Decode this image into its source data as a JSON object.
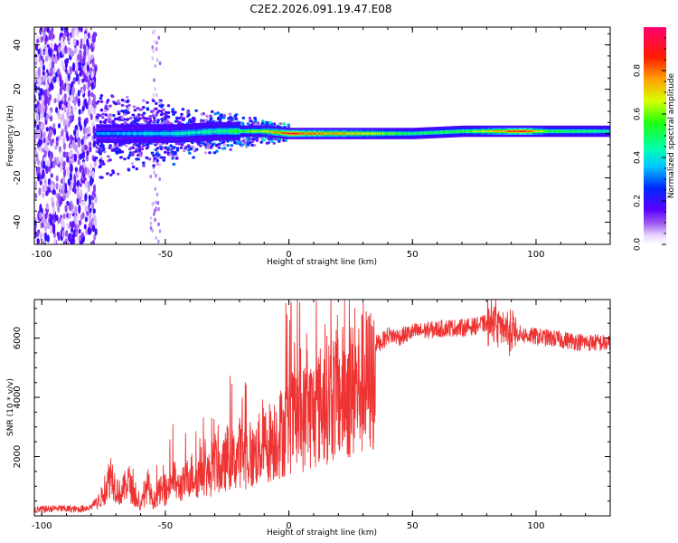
{
  "figure": {
    "title": "C2E2.2026.091.19.47.E08"
  },
  "colors": {
    "signal_line": "#ee3333",
    "background": "#ffffff",
    "axis": "#000000"
  },
  "chart_data": [
    {
      "type": "heatmap",
      "title": "C2E2.2026.091.19.47.E08",
      "xlabel": "Height of straight line (km)",
      "ylabel": "Frequency (Hz)",
      "xlim": [
        -103,
        130
      ],
      "ylim": [
        -50,
        48
      ],
      "x_ticks": [
        -100,
        -50,
        0,
        50,
        100
      ],
      "y_ticks": [
        -40,
        -20,
        0,
        20,
        40
      ],
      "x_tick_labels": [
        "-100",
        "-50",
        "0",
        "50",
        "100"
      ],
      "y_tick_labels": [
        "-40",
        "-20",
        "0",
        "20",
        "40"
      ],
      "colorbar": {
        "label": "Normalized spectral amplitude",
        "range": [
          0,
          1
        ],
        "ticks": [
          0.0,
          0.2,
          0.4,
          0.6,
          0.8
        ],
        "tick_labels": [
          "0.0",
          "0.2",
          "0.4",
          "0.6",
          "0.8"
        ]
      },
      "description_values": {
        "ridge_center_hz": [
          [
            -76,
            0
          ],
          [
            -60,
            0
          ],
          [
            -45,
            0
          ],
          [
            -30,
            1
          ],
          [
            -10,
            1
          ],
          [
            0,
            0
          ],
          [
            10,
            0
          ],
          [
            30,
            0
          ],
          [
            50,
            0
          ],
          [
            70,
            1
          ],
          [
            90,
            1
          ],
          [
            110,
            1
          ],
          [
            130,
            1
          ]
        ],
        "ridge_peak_amplitude": [
          [
            -76,
            0.35
          ],
          [
            -60,
            0.4
          ],
          [
            -45,
            0.45
          ],
          [
            -30,
            0.5
          ],
          [
            -20,
            0.6
          ],
          [
            -10,
            0.7
          ],
          [
            0,
            0.95
          ],
          [
            10,
            0.85
          ],
          [
            20,
            0.8
          ],
          [
            30,
            0.75
          ],
          [
            50,
            0.55
          ],
          [
            70,
            0.6
          ],
          [
            85,
            0.8
          ],
          [
            95,
            0.95
          ],
          [
            105,
            0.6
          ],
          [
            130,
            0.5
          ]
        ],
        "broadband_noise_region_km": [
          -103,
          -78
        ]
      }
    },
    {
      "type": "line",
      "xlabel": "Height of straight line (km)",
      "ylabel": "SNR (10 * v/v)",
      "xlim": [
        -103,
        130
      ],
      "ylim": [
        0,
        7300
      ],
      "x_ticks": [
        -100,
        -50,
        0,
        50,
        100
      ],
      "y_ticks": [
        2000,
        4000,
        6000
      ],
      "x_tick_labels": [
        "-100",
        "-50",
        "0",
        "50",
        "100"
      ],
      "y_tick_labels": [
        "2000",
        "4000",
        "6000"
      ],
      "series": [
        {
          "name": "SNR",
          "color": "#ee3333",
          "x": [
            -103,
            -95,
            -85,
            -80,
            -78,
            -75,
            -72,
            -70,
            -68,
            -65,
            -62,
            -60,
            -57,
            -55,
            -52,
            -50,
            -47,
            -45,
            -42,
            -40,
            -37,
            -35,
            -32,
            -30,
            -27,
            -25,
            -22,
            -20,
            -17,
            -15,
            -12,
            -10,
            -7,
            -5,
            -2,
            0,
            3,
            5,
            8,
            10,
            13,
            15,
            18,
            20,
            23,
            25,
            28,
            30,
            33,
            35,
            38,
            40,
            45,
            50,
            55,
            60,
            65,
            70,
            75,
            80,
            83,
            85,
            88,
            90,
            93,
            95,
            100,
            105,
            110,
            115,
            120,
            125,
            130
          ],
          "y": [
            200,
            250,
            220,
            300,
            500,
            900,
            1800,
            1200,
            900,
            1500,
            700,
            400,
            1300,
            600,
            1100,
            900,
            1700,
            1200,
            1400,
            1800,
            1600,
            2000,
            1700,
            2300,
            1900,
            2500,
            2300,
            2700,
            2500,
            2400,
            2800,
            3000,
            3200,
            3400,
            3600,
            3900,
            4100,
            4000,
            4400,
            4300,
            4700,
            4900,
            5100,
            5000,
            5300,
            5200,
            5400,
            5600,
            5700,
            5800,
            5900,
            6100,
            6050,
            6200,
            6250,
            6300,
            6350,
            6350,
            6400,
            6500,
            6600,
            6400,
            6300,
            6200,
            6150,
            6100,
            6050,
            6000,
            5950,
            5900,
            5850,
            5850,
            5800
          ]
        }
      ]
    }
  ]
}
